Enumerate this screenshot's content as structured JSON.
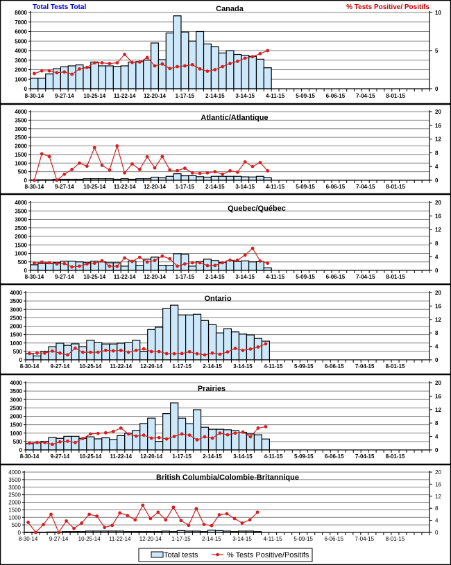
{
  "header": {
    "left_axis_title": "Total Tests Total",
    "right_axis_title": "% Tests Positive/ Positifs",
    "left_title_color": "#0000cc",
    "right_title_color": "#cc0000"
  },
  "legend": {
    "bar_label": "Total tests",
    "line_label": "% Tests Positive/Positifs"
  },
  "colors": {
    "bar_fill": "#cce8fa",
    "bar_stroke": "#000000",
    "line": "#d42020",
    "grid": "#808080"
  },
  "chart_data": [
    {
      "type": "bar+line",
      "title": "Canada",
      "x_tick_labels": [
        "8-30-14",
        "9-27-14",
        "10-25-14",
        "11-22-14",
        "12-20-14",
        "1-17-15",
        "2-14-15",
        "3-14-15",
        "4-11-15",
        "5-09-15",
        "6-06-15",
        "7-04-15",
        "8-01-15"
      ],
      "n_categories": 53,
      "left_ylim": [
        0,
        8000
      ],
      "left_ticks": [
        "0",
        "1000",
        "2000",
        "3000",
        "4000",
        "5000",
        "6000",
        "7000",
        "8000"
      ],
      "right_ylim": [
        0,
        10
      ],
      "right_ticks": [
        "0",
        "5",
        "10"
      ],
      "series": [
        {
          "name": "Total tests",
          "type": "bar",
          "axis": "left",
          "values": [
            1100,
            1100,
            1550,
            2100,
            2300,
            2400,
            2500,
            2200,
            2800,
            2400,
            2400,
            2350,
            2400,
            2800,
            2850,
            3000,
            4800,
            3050,
            5850,
            7650,
            5950,
            5000,
            6000,
            4700,
            4400,
            3750,
            4000,
            3600,
            3500,
            3400,
            3100,
            2200
          ]
        },
        {
          "name": "% Tests Positive/Positifs",
          "type": "line",
          "axis": "right",
          "values": [
            2.0,
            2.35,
            2.35,
            2.1,
            2.2,
            1.9,
            2.6,
            2.8,
            3.4,
            3.4,
            3.3,
            3.4,
            4.5,
            3.45,
            3.5,
            4.1,
            3.0,
            3.25,
            2.65,
            2.9,
            3.0,
            3.15,
            2.6,
            2.3,
            2.5,
            2.9,
            3.3,
            3.6,
            4.0,
            4.2,
            4.6,
            5.0
          ]
        }
      ]
    },
    {
      "type": "bar+line",
      "title": "Atlantic/Atlantique",
      "x_tick_labels": [
        "8-30-14",
        "9-27-14",
        "10-25-14",
        "11-22-14",
        "12-20-14",
        "1-17-15",
        "2-14-15",
        "3-14-15",
        "4-11-15",
        "5-09-15",
        "6-06-15",
        "7-04-15",
        "8-01-15"
      ],
      "n_categories": 53,
      "left_ylim": [
        0,
        4000
      ],
      "left_ticks": [
        "0",
        "500",
        "1000",
        "1500",
        "2000",
        "2500",
        "3000",
        "3500",
        "4000"
      ],
      "right_ylim": [
        0,
        20
      ],
      "right_ticks": [
        "0",
        "4",
        "8",
        "12",
        "16",
        "20"
      ],
      "series": [
        {
          "name": "Total tests",
          "type": "bar",
          "axis": "left",
          "values": [
            20,
            30,
            30,
            60,
            60,
            60,
            60,
            90,
            90,
            90,
            90,
            60,
            90,
            60,
            90,
            90,
            180,
            140,
            230,
            380,
            260,
            270,
            210,
            180,
            230,
            230,
            230,
            230,
            200,
            190,
            230,
            150
          ]
        },
        {
          "name": "% Tests Positive/Positifs",
          "type": "line",
          "axis": "right",
          "values": [
            0,
            7.7,
            6.9,
            0,
            1.75,
            3.15,
            5.0,
            4.1,
            9.5,
            4.35,
            3.0,
            10.0,
            2.15,
            4.75,
            3.15,
            6.85,
            3.6,
            6.9,
            3.0,
            2.8,
            3.5,
            2.15,
            2.0,
            2.15,
            2.5,
            1.75,
            2.75,
            2.35,
            5.35,
            4.0,
            5.15,
            2.75
          ]
        }
      ]
    },
    {
      "type": "bar+line",
      "title": "Quebec/Québec",
      "x_tick_labels": [
        "8-30-14",
        "9-27-14",
        "10-25-14",
        "11-22-14",
        "12-20-14",
        "1-17-15",
        "2-14-15",
        "3-14-15",
        "4-11-15",
        "5-09-15",
        "6-06-15",
        "7-04-15",
        "8-01-15"
      ],
      "n_categories": 53,
      "left_ylim": [
        0,
        4000
      ],
      "left_ticks": [
        "0",
        "500",
        "1000",
        "1500",
        "2000",
        "2500",
        "3000",
        "3500",
        "4000"
      ],
      "right_ylim": [
        0,
        20
      ],
      "right_ticks": [
        "0",
        "4",
        "8",
        "12",
        "16",
        "20"
      ],
      "series": [
        {
          "name": "Total tests",
          "type": "bar",
          "axis": "left",
          "values": [
            330,
            400,
            400,
            460,
            540,
            540,
            500,
            460,
            540,
            500,
            450,
            450,
            250,
            550,
            300,
            660,
            780,
            300,
            300,
            980,
            950,
            250,
            520,
            660,
            580,
            470,
            560,
            520,
            560,
            500,
            520,
            150
          ]
        },
        {
          "name": "% Tests Positive/Positifs",
          "type": "line",
          "axis": "right",
          "values": [
            2.15,
            2.45,
            2.25,
            1.9,
            2.0,
            1.0,
            1.25,
            1.9,
            2.1,
            2.85,
            1.25,
            1.2,
            3.65,
            2.65,
            3.85,
            2.45,
            2.9,
            4.2,
            3.4,
            1.25,
            1.9,
            2.25,
            2.25,
            1.4,
            1.45,
            2.25,
            3.0,
            3.0,
            4.5,
            6.5,
            2.75,
            2.1
          ]
        }
      ]
    },
    {
      "type": "bar+line",
      "title": "Ontario",
      "x_tick_labels": [
        "8-30-14",
        "9-27-14",
        "10-25-14",
        "11-22-14",
        "12-20-14",
        "1-17-15",
        "2-14-15",
        "3-14-15",
        "4-11-15",
        "5-09-15",
        "6-06-15",
        "7-04-15",
        "8-01-15"
      ],
      "n_categories": 53,
      "left_ylim": [
        0,
        4000
      ],
      "left_ticks": [
        "0",
        "500",
        "1000",
        "1500",
        "2000",
        "2500",
        "3000",
        "3500",
        "4000"
      ],
      "right_ylim": [
        0,
        20
      ],
      "right_ticks": [
        "0",
        "4",
        "8",
        "12",
        "16",
        "20"
      ],
      "series": [
        {
          "name": "Total tests",
          "type": "bar",
          "axis": "left",
          "values": [
            370,
            230,
            510,
            780,
            990,
            860,
            950,
            785,
            1160,
            1020,
            940,
            940,
            990,
            1020,
            1160,
            480,
            1800,
            1940,
            3060,
            3250,
            2670,
            2670,
            2710,
            2340,
            2090,
            1600,
            1850,
            1660,
            1530,
            1480,
            1270,
            1110
          ]
        },
        {
          "name": "% Tests Positive/Positifs",
          "type": "line",
          "axis": "right",
          "values": [
            1.9,
            2.0,
            2.0,
            2.6,
            2.0,
            1.45,
            3.45,
            2.25,
            2.25,
            2.25,
            2.8,
            2.65,
            2.8,
            2.25,
            2.8,
            3.25,
            2.45,
            2.45,
            1.85,
            1.8,
            1.85,
            2.4,
            1.8,
            1.45,
            2.0,
            1.65,
            2.35,
            3.4,
            2.8,
            3.2,
            3.8,
            4.75
          ]
        }
      ]
    },
    {
      "type": "bar+line",
      "title": "Prairies",
      "x_tick_labels": [
        "8-30-14",
        "9-27-14",
        "10-25-14",
        "11-22-14",
        "12-20-14",
        "1-17-15",
        "2-14-15",
        "3-14-15",
        "4-11-15",
        "5-09-15",
        "6-06-15",
        "7-04-15",
        "8-01-15"
      ],
      "n_categories": 53,
      "left_ylim": [
        0,
        4000
      ],
      "left_ticks": [
        "0",
        "500",
        "1000",
        "1500",
        "2000",
        "2500",
        "3000",
        "3500",
        "4000"
      ],
      "right_ylim": [
        0,
        20
      ],
      "right_ticks": [
        "0",
        "4",
        "8",
        "12",
        "16",
        "20"
      ],
      "series": [
        {
          "name": "Total tests",
          "type": "bar",
          "axis": "left",
          "values": [
            380,
            420,
            510,
            740,
            690,
            810,
            810,
            690,
            780,
            660,
            720,
            620,
            850,
            990,
            1160,
            1570,
            1890,
            510,
            2160,
            2800,
            1890,
            1560,
            2390,
            1350,
            1230,
            1230,
            1200,
            1150,
            1050,
            950,
            900,
            650
          ]
        },
        {
          "name": "% Tests Positive/Positifs",
          "type": "line",
          "axis": "right",
          "values": [
            2.0,
            2.2,
            2.2,
            1.65,
            2.4,
            2.6,
            2.2,
            3.4,
            4.75,
            4.9,
            5.1,
            5.5,
            6.5,
            4.75,
            4.1,
            4.4,
            3.5,
            3.65,
            3.25,
            4.0,
            4.75,
            4.4,
            3.0,
            3.9,
            3.5,
            5.0,
            4.5,
            5.0,
            5.3,
            3.9,
            6.5,
            6.9
          ]
        }
      ]
    },
    {
      "type": "bar+line",
      "title": "British Columbia/Colombie-Britannique",
      "x_tick_labels": [
        "8-30-14",
        "9-27-14",
        "10-25-14",
        "11-22-14",
        "12-20-14",
        "1-17-15",
        "2-14-15",
        "3-14-15",
        "4-11-15",
        "5-09-15",
        "6-06-15",
        "7-04-15",
        "8-01-15"
      ],
      "n_categories": 53,
      "left_ylim": [
        0,
        4000
      ],
      "left_ticks": [
        "0",
        "500",
        "1000",
        "1500",
        "2000",
        "2500",
        "3000",
        "3500",
        "4000"
      ],
      "right_ylim": [
        0,
        20
      ],
      "right_ticks": [
        "0",
        "4",
        "8",
        "12",
        "16",
        "20"
      ],
      "series": [
        {
          "name": "Total tests",
          "type": "bar",
          "axis": "left",
          "values": [
            20,
            20,
            20,
            30,
            30,
            60,
            60,
            60,
            90,
            90,
            90,
            90,
            90,
            60,
            60,
            60,
            60,
            60,
            90,
            60,
            120,
            90,
            90,
            60,
            150,
            120,
            90,
            60,
            90,
            90,
            60
          ]
        },
        {
          "name": "% Tests Positive/Positifs",
          "type": "line",
          "axis": "right",
          "values": [
            3.35,
            0,
            2.6,
            6.0,
            0,
            3.8,
            1.3,
            3.1,
            6.0,
            5.4,
            1.65,
            2.35,
            6.45,
            5.6,
            4.15,
            9.0,
            4.6,
            6.7,
            4.15,
            8.35,
            3.95,
            2.35,
            7.9,
            2.65,
            2.25,
            5.85,
            6.2,
            4.6,
            3.1,
            4.15,
            6.7
          ]
        }
      ]
    }
  ]
}
